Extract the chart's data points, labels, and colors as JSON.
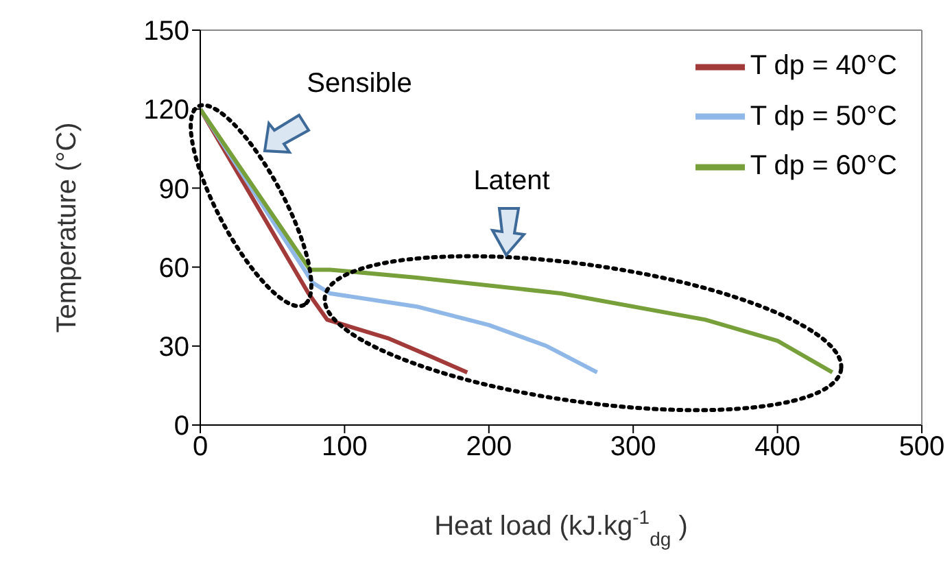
{
  "chart_data": {
    "type": "line",
    "xlabel": "Heat load  (kJ.kg$^{-1}$$_{dg}$ )",
    "ylabel": "Temperature  (°C)",
    "xlim": [
      0,
      500
    ],
    "xticks": [
      0,
      100,
      200,
      300,
      400,
      500
    ],
    "ylim": [
      0,
      150
    ],
    "yticks": [
      0,
      30,
      60,
      90,
      120,
      150
    ],
    "grid": false,
    "legend": "top right",
    "marker": "none",
    "line_style": "solid",
    "annotations": [
      "Sensible",
      "Latent"
    ],
    "series": [
      {
        "name": "T dp = 40°C",
        "color": "#a33a3a",
        "x": [
          0,
          75,
          88,
          130,
          160,
          185
        ],
        "values": [
          120,
          50,
          40,
          33,
          26,
          20
        ]
      },
      {
        "name": "T dp = 50°C",
        "color": "#8fb8e8",
        "x": [
          0,
          78,
          90,
          150,
          200,
          240,
          275
        ],
        "values": [
          120,
          54,
          50,
          45,
          38,
          30,
          20
        ]
      },
      {
        "name": "T dp = 60°C",
        "color": "#77a03a",
        "x": [
          0,
          76,
          90,
          150,
          250,
          350,
          400,
          438
        ],
        "values": [
          120,
          59,
          59,
          56,
          50,
          40,
          32,
          20
        ]
      }
    ]
  }
}
